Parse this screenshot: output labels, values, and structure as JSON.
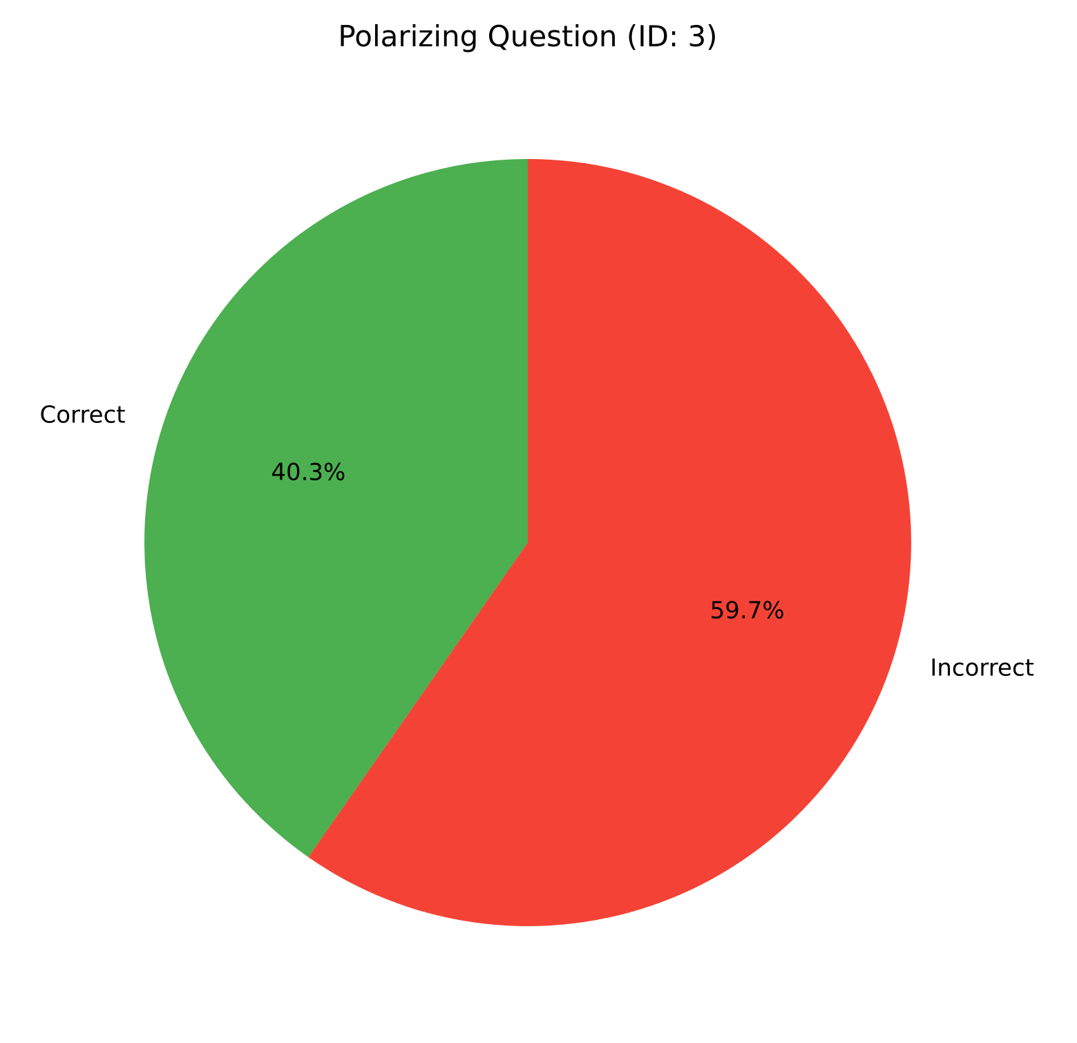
{
  "chart_data": {
    "type": "pie",
    "title": "Polarizing Question (ID: 3)",
    "labels": [
      "Correct",
      "Incorrect"
    ],
    "values": [
      40.3,
      59.7
    ],
    "value_labels": [
      "40.3%",
      "59.7%"
    ],
    "colors": [
      "#4caf50",
      "#f44336"
    ],
    "start_angle_deg": 90,
    "direction": "counterclockwise",
    "legend": "none"
  }
}
